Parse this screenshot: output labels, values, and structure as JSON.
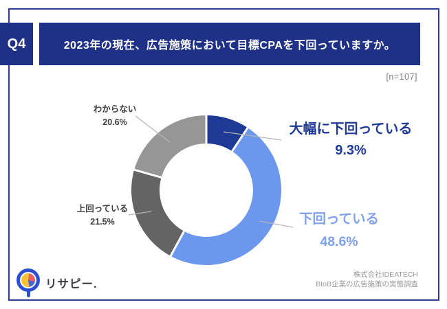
{
  "page": {
    "background": "#ffffff",
    "border_color": "#2e3f94"
  },
  "header": {
    "tag": "Q4",
    "title": "2023年の現在、広告施策において目標CPAを下回っていますか。",
    "bar_color": "#1f3187",
    "text_color": "#ffffff"
  },
  "sample_size": "[n=107]",
  "chart_data": {
    "type": "pie",
    "donut": true,
    "title": "2023年の現在、広告施策において目標CPAを下回っていますか。",
    "sample_note": "[n=107]",
    "unit": "%",
    "start_angle": "12-o-clock, clockwise",
    "legend_position": "callout-labels",
    "categories": [
      "大幅に下回っている",
      "下回っている",
      "上回っている",
      "わからない"
    ],
    "values": [
      9.3,
      48.6,
      21.5,
      20.6
    ],
    "segments": [
      {
        "label": "大幅に下回っている",
        "value": 9.3,
        "display": "9.3%",
        "color": "#1e3a96",
        "label_color": "#1e3a96"
      },
      {
        "label": "下回っている",
        "value": 48.6,
        "display": "48.6%",
        "color": "#6c97ee",
        "label_color": "#7fa0ea"
      },
      {
        "label": "上回っている",
        "value": 21.5,
        "display": "21.5%",
        "color": "#646464",
        "label_color": "#3e3e3e"
      },
      {
        "label": "わからない",
        "value": 20.6,
        "display": "20.6%",
        "color": "#969696",
        "label_color": "#3e3e3e"
      }
    ],
    "leader_line_color": "#b5b5b5",
    "separator_color": "#ffffff"
  },
  "footer": {
    "brand": "リサピー.",
    "credit_line1": "株式会社IDEATECH",
    "credit_line2": "BtoB企業の広告施策の実態調査"
  }
}
